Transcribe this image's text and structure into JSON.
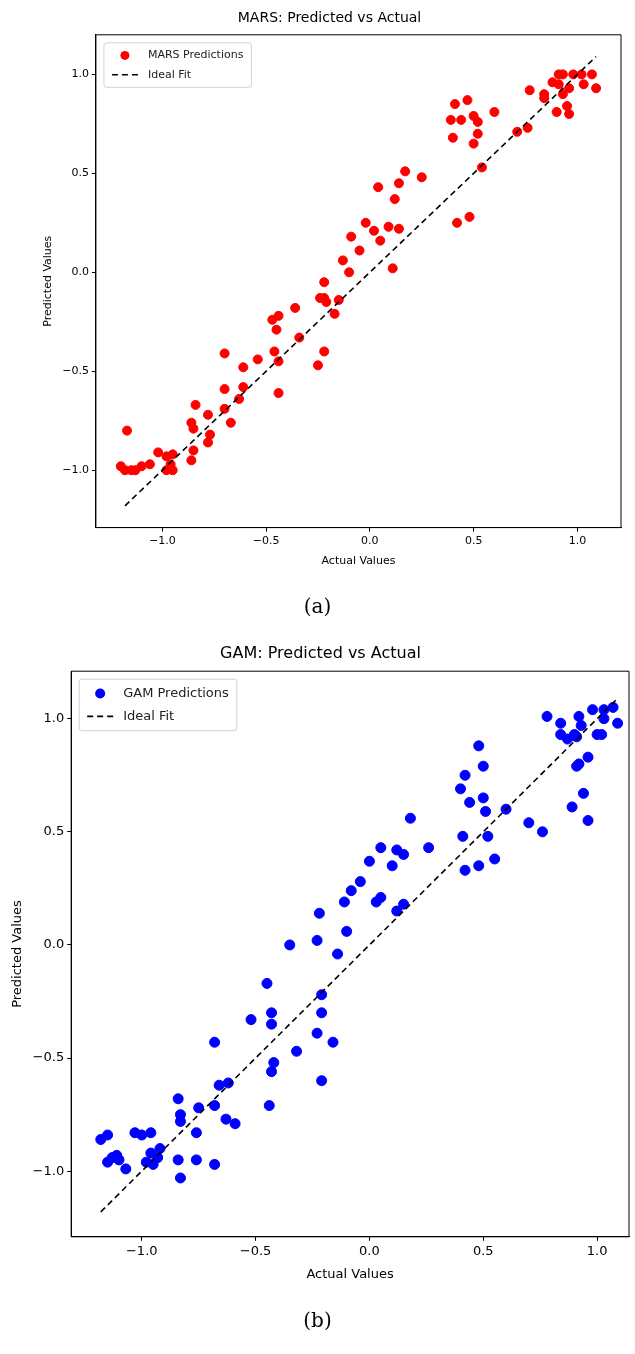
{
  "chart_data": [
    {
      "type": "scatter",
      "title": "MARS: Predicted vs Actual",
      "xlabel": "Actual Values",
      "ylabel": "Predicted Values",
      "legend": "top left",
      "grid": false,
      "marker": "circle",
      "xlim": [
        -1.32,
        1.21
      ],
      "ylim": [
        -1.29,
        1.2
      ],
      "xticks": [
        {
          "value": -1,
          "label": "−1.0"
        },
        {
          "value": -0.5,
          "label": "−0.5"
        },
        {
          "value": 0,
          "label": "0.0"
        },
        {
          "value": 0.5,
          "label": "0.5"
        },
        {
          "value": 1,
          "label": "1.0"
        }
      ],
      "yticks": [
        {
          "value": -1,
          "label": "−1.0"
        },
        {
          "value": -0.5,
          "label": "−0.5"
        },
        {
          "value": 0,
          "label": "0.0"
        },
        {
          "value": 0.5,
          "label": "0.5"
        },
        {
          "value": 1,
          "label": "1.0"
        }
      ],
      "annotations": [
        "(a)"
      ],
      "series": [
        {
          "name": "MARS Predictions",
          "color": "#ff0000",
          "x": [
            -1.2,
            -1.17,
            -1.18,
            -1.15,
            -1.13,
            -1.1,
            -1.06,
            -1.02,
            -0.98,
            -0.95,
            -0.98,
            -0.95,
            -0.96,
            -0.86,
            -0.85,
            -0.86,
            -0.85,
            -0.84,
            -0.78,
            -0.77,
            -0.78,
            -0.67,
            -0.7,
            -0.7,
            -0.7,
            -0.63,
            -0.61,
            -0.61,
            -0.54,
            -0.44,
            -0.44,
            -0.46,
            -0.45,
            -0.47,
            -0.44,
            -0.36,
            -0.34,
            -0.25,
            -0.22,
            -0.24,
            -0.22,
            -0.21,
            -0.22,
            -0.15,
            -0.17,
            -0.1,
            -0.13,
            -0.05,
            -0.09,
            -0.02,
            0.02,
            0.05,
            0.09,
            0.14,
            0.11,
            0.04,
            0.12,
            0.14,
            0.17,
            0.25,
            0.42,
            0.48,
            0.54,
            0.4,
            0.39,
            0.44,
            0.41,
            0.47,
            0.5,
            0.52,
            0.52,
            0.5,
            0.6,
            0.71,
            0.76,
            0.77,
            0.84,
            0.84,
            0.88,
            0.9,
            0.91,
            0.93,
            0.91,
            0.93,
            0.96,
            0.95,
            0.96,
            0.98,
            1.02,
            1.03,
            1.07,
            1.09
          ],
          "values": [
            -0.98,
            -0.8,
            -1.0,
            -1.0,
            -1.0,
            -0.98,
            -0.97,
            -0.91,
            -0.93,
            -0.92,
            -1.0,
            -1.0,
            -0.97,
            -0.95,
            -0.9,
            -0.76,
            -0.79,
            -0.67,
            -0.86,
            -0.82,
            -0.72,
            -0.76,
            -0.69,
            -0.59,
            -0.41,
            -0.64,
            -0.58,
            -0.48,
            -0.44,
            -0.61,
            -0.45,
            -0.4,
            -0.29,
            -0.24,
            -0.22,
            -0.18,
            -0.33,
            -0.47,
            -0.4,
            -0.13,
            -0.13,
            -0.15,
            -0.05,
            -0.14,
            -0.21,
            0.0,
            0.06,
            0.11,
            0.18,
            0.25,
            0.21,
            0.16,
            0.23,
            0.22,
            0.02,
            0.43,
            0.37,
            0.45,
            0.51,
            0.48,
            0.25,
            0.28,
            0.53,
            0.68,
            0.77,
            0.77,
            0.85,
            0.87,
            0.79,
            0.76,
            0.7,
            0.65,
            0.81,
            0.71,
            0.73,
            0.92,
            0.88,
            0.9,
            0.96,
            0.81,
            1.0,
            1.0,
            0.95,
            0.9,
            0.93,
            0.84,
            0.8,
            1.0,
            1.0,
            0.95,
            1.0,
            0.93
          ]
        },
        {
          "name": "Ideal Fit",
          "type": "line",
          "color": "#000000",
          "line_style": "dashed",
          "marker": "none",
          "x": [
            -1.18,
            1.09
          ],
          "values": [
            -1.18,
            1.09
          ]
        }
      ]
    },
    {
      "type": "scatter",
      "title": "GAM: Predicted vs Actual",
      "xlabel": "Actual Values",
      "ylabel": "Predicted Values",
      "legend": "top left",
      "grid": false,
      "marker": "circle",
      "xlim": [
        -1.31,
        1.14
      ],
      "ylim": [
        -1.29,
        1.21
      ],
      "xticks": [
        {
          "value": -1,
          "label": "−1.0"
        },
        {
          "value": -0.5,
          "label": "−0.5"
        },
        {
          "value": 0,
          "label": "0.0"
        },
        {
          "value": 0.5,
          "label": "0.5"
        },
        {
          "value": 1,
          "label": "1.0"
        }
      ],
      "yticks": [
        {
          "value": -1,
          "label": "−1.0"
        },
        {
          "value": -0.5,
          "label": "−0.5"
        },
        {
          "value": 0,
          "label": "0.0"
        },
        {
          "value": 0.5,
          "label": "0.5"
        },
        {
          "value": 1,
          "label": "1.0"
        }
      ],
      "annotations": [
        "(b)"
      ],
      "series": [
        {
          "name": "GAM Predictions",
          "color": "#0000ff",
          "x": [
            -1.18,
            -1.15,
            -1.15,
            -1.13,
            -1.11,
            -1.1,
            -1.07,
            -1.03,
            -1.0,
            -0.96,
            -0.96,
            -0.98,
            -0.95,
            -0.92,
            -0.93,
            -0.84,
            -0.83,
            -0.83,
            -0.84,
            -0.83,
            -0.75,
            -0.76,
            -0.76,
            -0.68,
            -0.68,
            -0.68,
            -0.66,
            -0.62,
            -0.63,
            -0.59,
            -0.52,
            -0.45,
            -0.43,
            -0.43,
            -0.42,
            -0.43,
            -0.44,
            -0.35,
            -0.32,
            -0.23,
            -0.22,
            -0.21,
            -0.21,
            -0.23,
            -0.21,
            -0.16,
            -0.14,
            -0.1,
            -0.11,
            -0.08,
            -0.04,
            0.0,
            0.05,
            0.03,
            0.05,
            0.1,
            0.12,
            0.15,
            0.12,
            0.15,
            0.18,
            0.26,
            0.41,
            0.42,
            0.4,
            0.42,
            0.44,
            0.48,
            0.5,
            0.5,
            0.51,
            0.52,
            0.48,
            0.55,
            0.6,
            0.7,
            0.76,
            0.78,
            0.84,
            0.84,
            0.87,
            0.9,
            0.91,
            0.92,
            0.93,
            0.91,
            0.92,
            0.96,
            0.94,
            0.89,
            0.96,
            0.98,
            1.0,
            1.02,
            1.03,
            1.03,
            1.07,
            1.09
          ],
          "values": [
            -0.86,
            -0.84,
            -0.96,
            -0.94,
            -0.93,
            -0.95,
            -0.99,
            -0.83,
            -0.84,
            -0.83,
            -0.92,
            -0.96,
            -0.97,
            -0.9,
            -0.94,
            -0.68,
            -0.75,
            -0.78,
            -0.95,
            -1.03,
            -0.72,
            -0.83,
            -0.95,
            -0.71,
            -0.43,
            -0.97,
            -0.62,
            -0.61,
            -0.77,
            -0.79,
            -0.33,
            -0.17,
            -0.3,
            -0.35,
            -0.52,
            -0.56,
            -0.71,
            0.0,
            -0.47,
            0.02,
            0.14,
            -0.22,
            -0.3,
            -0.39,
            -0.6,
            -0.43,
            -0.04,
            0.06,
            0.19,
            0.24,
            0.28,
            0.37,
            0.43,
            0.19,
            0.21,
            0.35,
            0.42,
            0.4,
            0.15,
            0.18,
            0.56,
            0.43,
            0.48,
            0.33,
            0.69,
            0.75,
            0.63,
            0.88,
            0.79,
            0.65,
            0.59,
            0.48,
            0.35,
            0.38,
            0.6,
            0.54,
            0.5,
            1.01,
            0.98,
            0.93,
            0.91,
            0.93,
            0.92,
            1.01,
            0.97,
            0.79,
            0.8,
            0.83,
            0.67,
            0.61,
            0.55,
            1.04,
            0.93,
            0.93,
            1.04,
            1.0,
            1.05,
            0.98
          ]
        },
        {
          "name": "Ideal Fit",
          "type": "line",
          "color": "#000000",
          "line_style": "dashed",
          "marker": "none",
          "x": [
            -1.18,
            1.09
          ],
          "values": [
            -1.18,
            1.09
          ]
        }
      ]
    }
  ]
}
